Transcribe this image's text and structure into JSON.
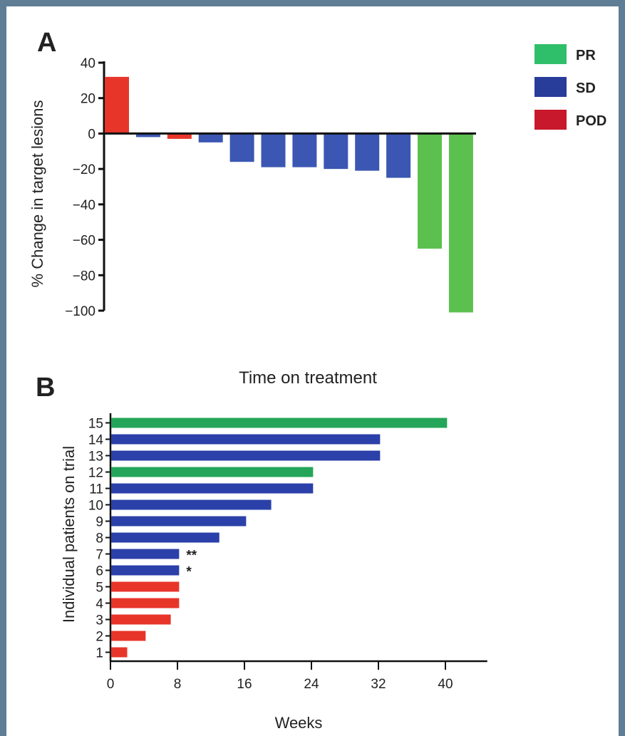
{
  "legend": [
    {
      "label": "PR",
      "color": "#2fbf6a"
    },
    {
      "label": "SD",
      "color": "#283c9a"
    },
    {
      "label": "POD",
      "color": "#c8182b"
    }
  ],
  "chart_data": [
    {
      "panel": "A",
      "type": "bar",
      "title": "",
      "xlabel": "",
      "ylabel": "% Change in target lesions",
      "ylim": [
        -100,
        40
      ],
      "yticks": [
        40,
        20,
        0,
        -20,
        -40,
        -60,
        -80,
        -100
      ],
      "series": [
        {
          "values": [
            32,
            -2,
            -3,
            -5,
            -16,
            -19,
            -19,
            -20,
            -21,
            -25,
            -65,
            -101
          ]
        }
      ],
      "colors": [
        "#e8352a",
        "#3b57b3",
        "#e8352a",
        "#3b57b3",
        "#3b57b3",
        "#3b57b3",
        "#3b57b3",
        "#3b57b3",
        "#3b57b3",
        "#3b57b3",
        "#5cc04f",
        "#5cc04f"
      ]
    },
    {
      "panel": "B",
      "type": "bar",
      "orientation": "horizontal",
      "title": "Time on treatment",
      "xlabel": "Weeks",
      "ylabel": "Individual patients on trial",
      "xlim": [
        0,
        45
      ],
      "xticks": [
        0,
        8,
        16,
        24,
        32,
        40
      ],
      "categories": [
        "1",
        "2",
        "3",
        "4",
        "5",
        "6",
        "7",
        "8",
        "9",
        "10",
        "11",
        "12",
        "13",
        "14",
        "15"
      ],
      "values": [
        2,
        4.2,
        7.2,
        8.2,
        8.2,
        8.2,
        8.2,
        13,
        16.2,
        19.2,
        24.2,
        24.2,
        32.2,
        32.2,
        40.2
      ],
      "colors": [
        "#e8352a",
        "#e8352a",
        "#e8352a",
        "#e8352a",
        "#e8352a",
        "#2b40a8",
        "#2b40a8",
        "#2b40a8",
        "#2b40a8",
        "#2b40a8",
        "#2b40a8",
        "#24a55a",
        "#2b40a8",
        "#2b40a8",
        "#24a55a"
      ],
      "annotations": [
        {
          "category": "7",
          "text": "**"
        },
        {
          "category": "6",
          "text": "*"
        }
      ]
    }
  ]
}
